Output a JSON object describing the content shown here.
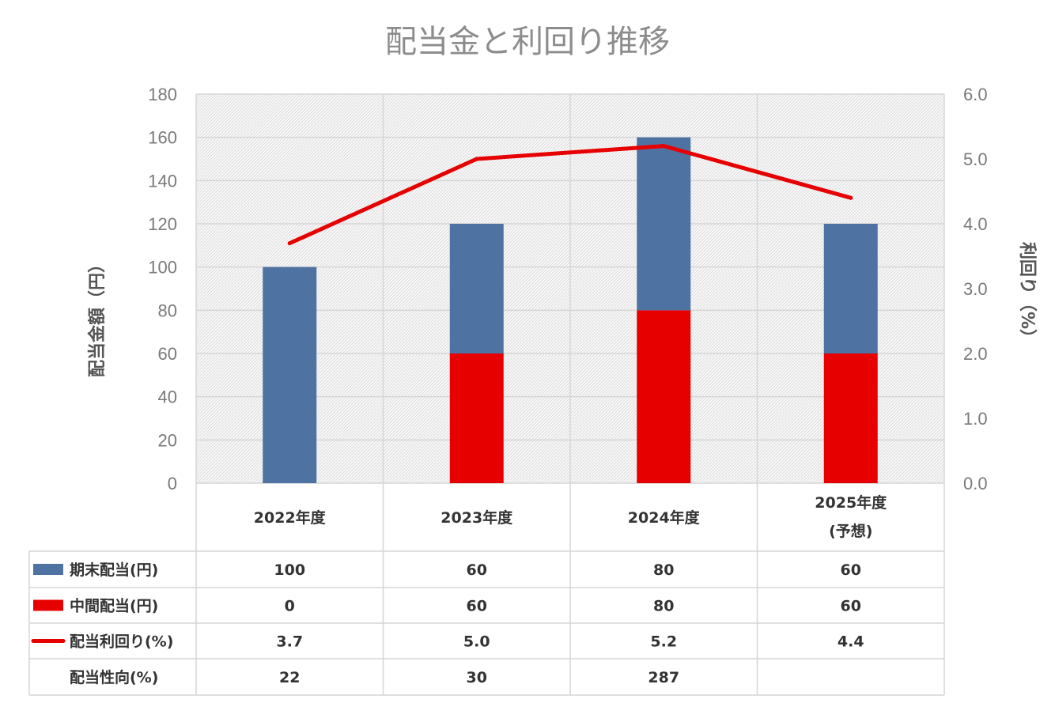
{
  "chart_data": {
    "type": "bar",
    "title": "配当金と利回り推移",
    "categories": [
      {
        "line1": "2022年度",
        "line2": ""
      },
      {
        "line1": "2023年度",
        "line2": ""
      },
      {
        "line1": "2024年度",
        "line2": ""
      },
      {
        "line1": "2025年度",
        "line2": "(予想)"
      }
    ],
    "ylabel_left": "配当金額（円）",
    "ylabel_right": "利回り（%）",
    "ylim_left": [
      0,
      180
    ],
    "ylim_right": [
      0,
      6.0
    ],
    "yticks_left": [
      "0",
      "20",
      "40",
      "60",
      "80",
      "100",
      "120",
      "140",
      "160",
      "180"
    ],
    "yticks_right": [
      "0.0",
      "1.0",
      "2.0",
      "3.0",
      "4.0",
      "5.0",
      "6.0"
    ],
    "stacked": true,
    "grid": true,
    "series": [
      {
        "name": "期末配当(円)",
        "type": "bar",
        "axis": "left",
        "color": "#4e73a3",
        "values": [
          100,
          60,
          80,
          60
        ],
        "labels": [
          "100",
          "60",
          "80",
          "60"
        ]
      },
      {
        "name": "中間配当(円)",
        "type": "bar",
        "axis": "left",
        "color": "#e60000",
        "values": [
          0,
          60,
          80,
          60
        ],
        "labels": [
          "0",
          "60",
          "80",
          "60"
        ]
      },
      {
        "name": "配当利回り(%)",
        "type": "line",
        "axis": "right",
        "color": "#e60000",
        "values": [
          3.7,
          5.0,
          5.2,
          4.4
        ],
        "labels": [
          "3.7",
          "5.0",
          "5.2",
          "4.4"
        ]
      },
      {
        "name": "配当性向(%)",
        "type": "table",
        "color": "",
        "values": [
          22,
          30,
          287,
          null
        ],
        "labels": [
          "22",
          "30",
          "287",
          ""
        ]
      }
    ]
  }
}
